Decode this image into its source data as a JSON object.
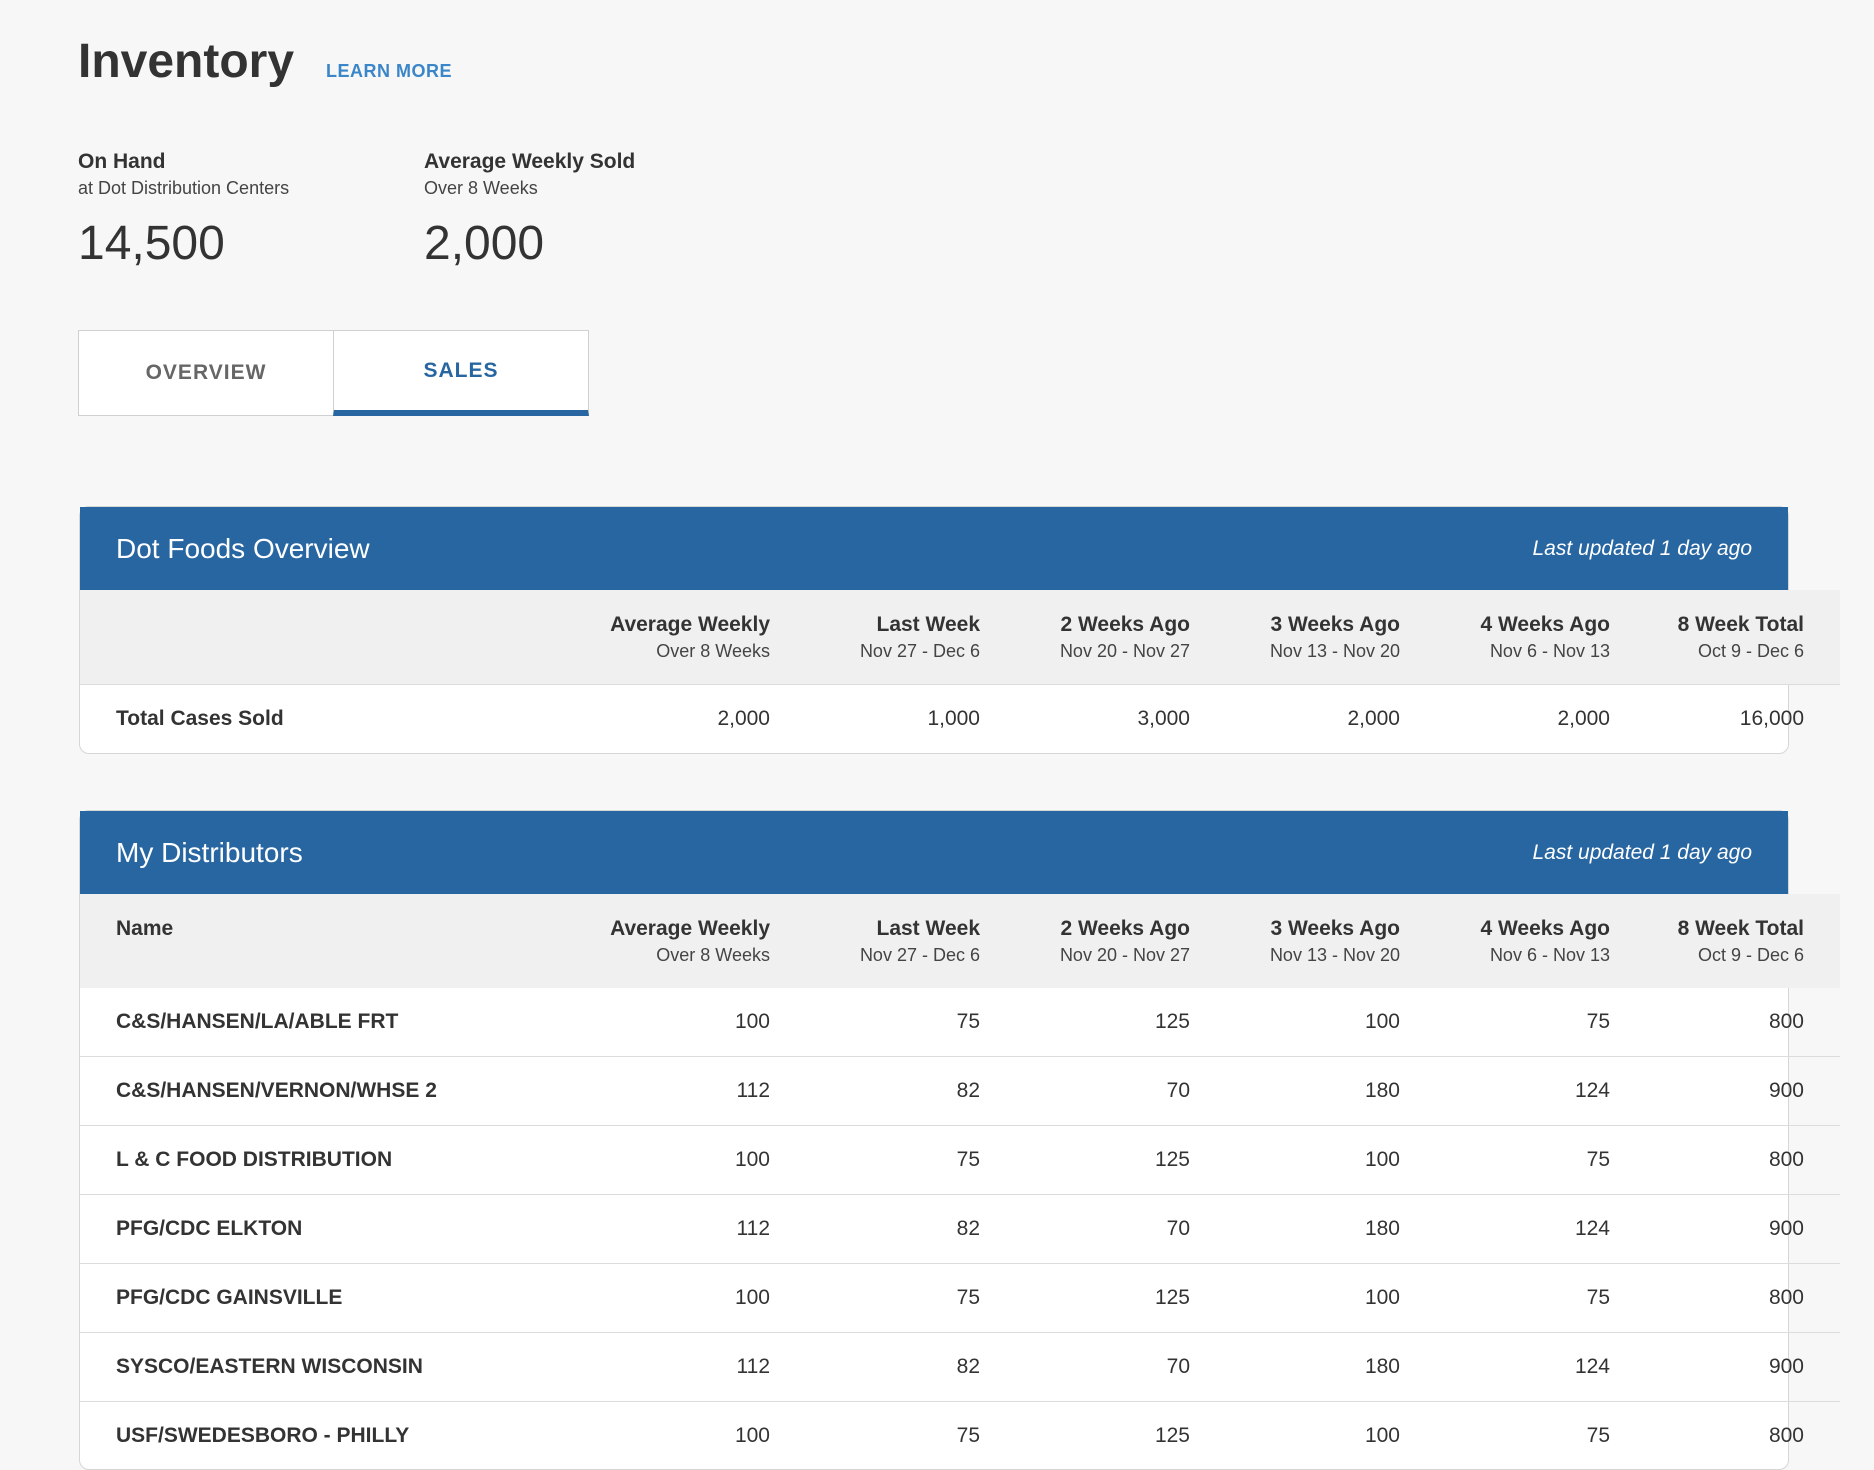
{
  "header": {
    "title": "Inventory",
    "learn_more": "LEARN MORE"
  },
  "stats": {
    "on_hand": {
      "label": "On Hand",
      "sub": "at Dot Distribution Centers",
      "value": "14,500"
    },
    "avg_weekly": {
      "label": "Average Weekly Sold",
      "sub": "Over 8 Weeks",
      "value": "2,000"
    }
  },
  "tabs": [
    {
      "label": "OVERVIEW",
      "active": false
    },
    {
      "label": "SALES",
      "active": true
    }
  ],
  "columns": [
    {
      "main": "Average Weekly",
      "sub": "Over 8 Weeks"
    },
    {
      "main": "Last Week",
      "sub": "Nov 27 - Dec 6"
    },
    {
      "main": "2 Weeks Ago",
      "sub": "Nov 20 - Nov 27"
    },
    {
      "main": "3 Weeks Ago",
      "sub": "Nov 13 - Nov 20"
    },
    {
      "main": "4 Weeks Ago",
      "sub": "Nov 6 - Nov 13"
    },
    {
      "main": "8 Week Total",
      "sub": "Oct 9 - Dec 6"
    }
  ],
  "overview": {
    "title": "Dot Foods Overview",
    "updated": "Last updated 1 day ago",
    "rows": [
      {
        "name": "Total Cases Sold",
        "values": [
          "2,000",
          "1,000",
          "3,000",
          "2,000",
          "2,000",
          "16,000"
        ]
      }
    ]
  },
  "distributors": {
    "title": "My Distributors",
    "updated": "Last updated 1 day ago",
    "name_header": "Name",
    "rows": [
      {
        "name": "C&S/HANSEN/LA/ABLE FRT",
        "values": [
          "100",
          "75",
          "125",
          "100",
          "75",
          "800"
        ]
      },
      {
        "name": "C&S/HANSEN/VERNON/WHSE 2",
        "values": [
          "112",
          "82",
          "70",
          "180",
          "124",
          "900"
        ]
      },
      {
        "name": "L & C FOOD DISTRIBUTION",
        "values": [
          "100",
          "75",
          "125",
          "100",
          "75",
          "800"
        ]
      },
      {
        "name": "PFG/CDC ELKTON",
        "values": [
          "112",
          "82",
          "70",
          "180",
          "124",
          "900"
        ]
      },
      {
        "name": "PFG/CDC GAINSVILLE",
        "values": [
          "100",
          "75",
          "125",
          "100",
          "75",
          "800"
        ]
      },
      {
        "name": "SYSCO/EASTERN WISCONSIN",
        "values": [
          "112",
          "82",
          "70",
          "180",
          "124",
          "900"
        ]
      },
      {
        "name": "USF/SWEDESBORO - PHILLY",
        "values": [
          "100",
          "75",
          "125",
          "100",
          "75",
          "800"
        ]
      }
    ]
  }
}
